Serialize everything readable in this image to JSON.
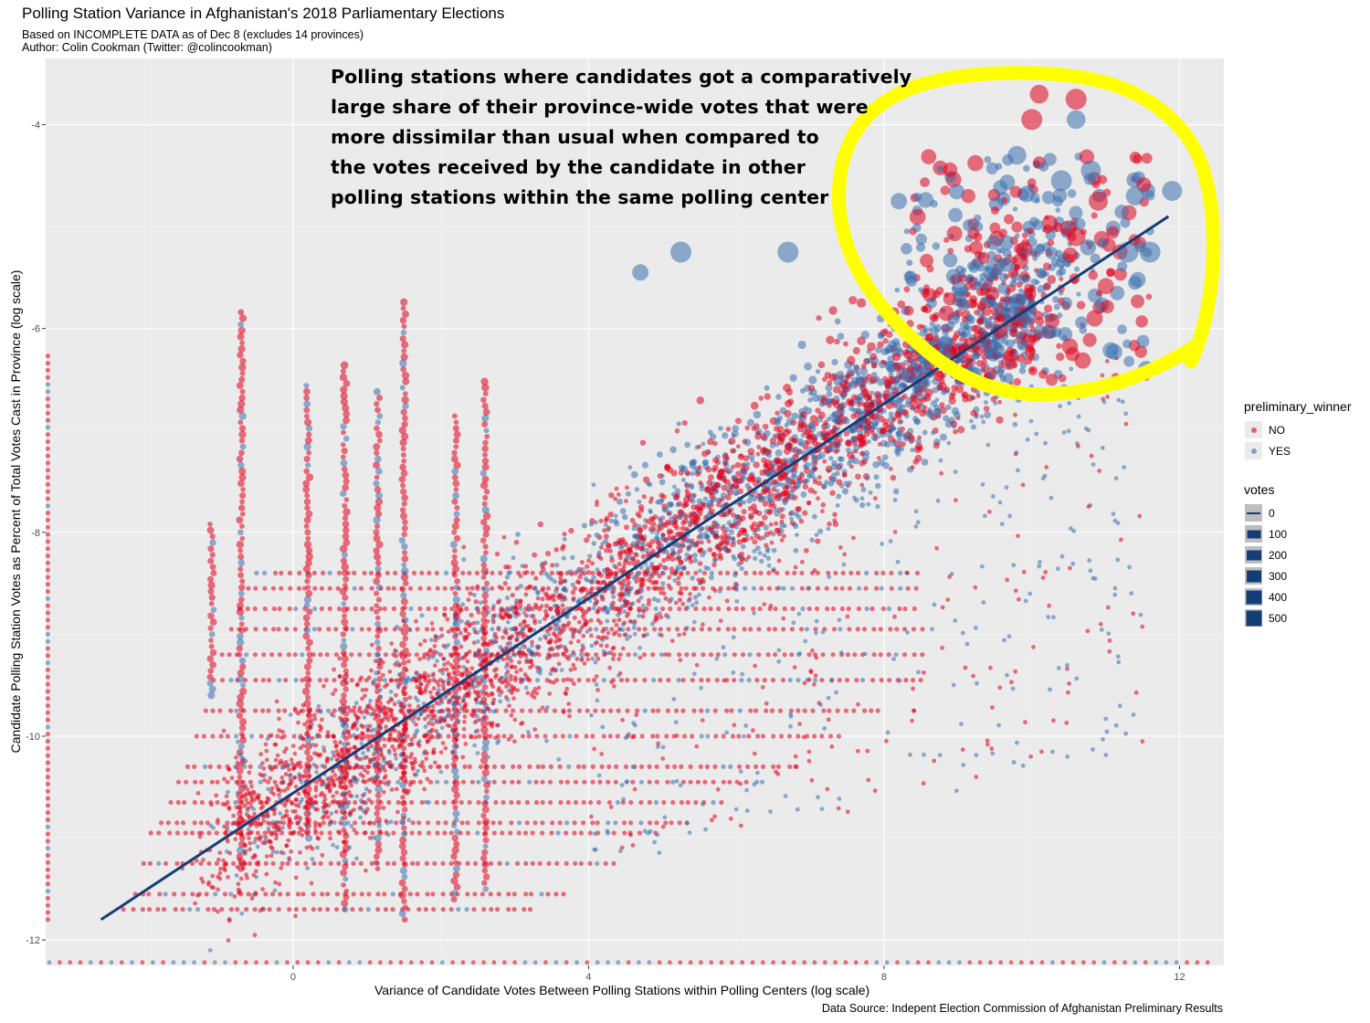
{
  "chart_data": {
    "type": "scatter",
    "title": "Polling Station Variance in Afghanistan's 2018 Parliamentary Elections",
    "subtitle": [
      "Based on INCOMPLETE DATA as of Dec 8 (excludes 14 provinces)",
      "Author: Colin Cookman (Twitter: @colincookman)"
    ],
    "caption": "Data Source: Indepent Election Commission of Afghanistan Preliminary Results",
    "xlabel": "Variance of Candidate Votes Between Polling Stations within Polling Centers (log scale)",
    "ylabel": "Candidate Polling Station Votes as Percent of Total Votes Cast in Province (log scale)",
    "xlim": [
      -3.35,
      12.6
    ],
    "ylim": [
      -12.25,
      -3.35
    ],
    "x_ticks": [
      0,
      4,
      8,
      12
    ],
    "y_ticks": [
      -4,
      -6,
      -8,
      -10,
      -12
    ],
    "grid": true,
    "annotation": "Polling stations where candidates got a comparatively\nlarge share of their province-wide votes that were\nmore dissimilar than usual when compared to\nthe votes received by the candidate in other\npolling stations within the same polling center",
    "highlight_circle": {
      "color": "#ffff00",
      "note": "hand-drawn yellow loop around upper-right cluster"
    },
    "trend_line": {
      "color": "#153d75",
      "from": [
        -2.6,
        -11.8
      ],
      "to": [
        11.85,
        -4.9
      ]
    },
    "series": [
      {
        "name": "NO",
        "color": "#e0001b"
      },
      {
        "name": "YES",
        "color": "#3a6faf"
      }
    ],
    "legends": {
      "color": {
        "title": "preliminary_winner",
        "entries": [
          "NO",
          "YES"
        ]
      },
      "size": {
        "title": "votes",
        "entries": [
          "0",
          "100",
          "200",
          "300",
          "400",
          "500"
        ]
      }
    },
    "highlight_points": [
      {
        "x": 10.0,
        "y": -3.95,
        "votes": 300,
        "s": "NO"
      },
      {
        "x": 10.6,
        "y": -3.75,
        "votes": 300,
        "s": "NO"
      },
      {
        "x": 10.1,
        "y": -3.7,
        "votes": 250,
        "s": "NO"
      },
      {
        "x": 10.6,
        "y": -3.95,
        "votes": 250,
        "s": "YES"
      },
      {
        "x": 11.9,
        "y": -4.65,
        "votes": 280,
        "s": "YES"
      },
      {
        "x": 11.4,
        "y": -4.7,
        "votes": 250,
        "s": "YES"
      },
      {
        "x": 10.8,
        "y": -4.45,
        "votes": 280,
        "s": "YES"
      },
      {
        "x": 9.8,
        "y": -4.3,
        "votes": 250,
        "s": "YES"
      },
      {
        "x": 10.4,
        "y": -4.55,
        "votes": 300,
        "s": "YES"
      },
      {
        "x": 11.6,
        "y": -5.25,
        "votes": 300,
        "s": "YES"
      },
      {
        "x": 11.3,
        "y": -5.25,
        "votes": 300,
        "s": "YES"
      },
      {
        "x": 10.9,
        "y": -4.75,
        "votes": 260,
        "s": "NO"
      },
      {
        "x": 10.6,
        "y": -5.1,
        "votes": 250,
        "s": "NO"
      },
      {
        "x": 10.85,
        "y": -5.9,
        "votes": 200,
        "s": "NO"
      },
      {
        "x": 9.5,
        "y": -5.4,
        "votes": 250,
        "s": "YES"
      },
      {
        "x": 8.2,
        "y": -4.75,
        "votes": 200,
        "s": "YES"
      },
      {
        "x": 6.7,
        "y": -5.25,
        "votes": 300,
        "s": "YES"
      },
      {
        "x": 5.25,
        "y": -5.25,
        "votes": 300,
        "s": "YES"
      },
      {
        "x": 4.7,
        "y": -5.45,
        "votes": 200,
        "s": "YES"
      },
      {
        "x": 10.55,
        "y": -6.25,
        "votes": 150,
        "s": "NO"
      }
    ]
  }
}
